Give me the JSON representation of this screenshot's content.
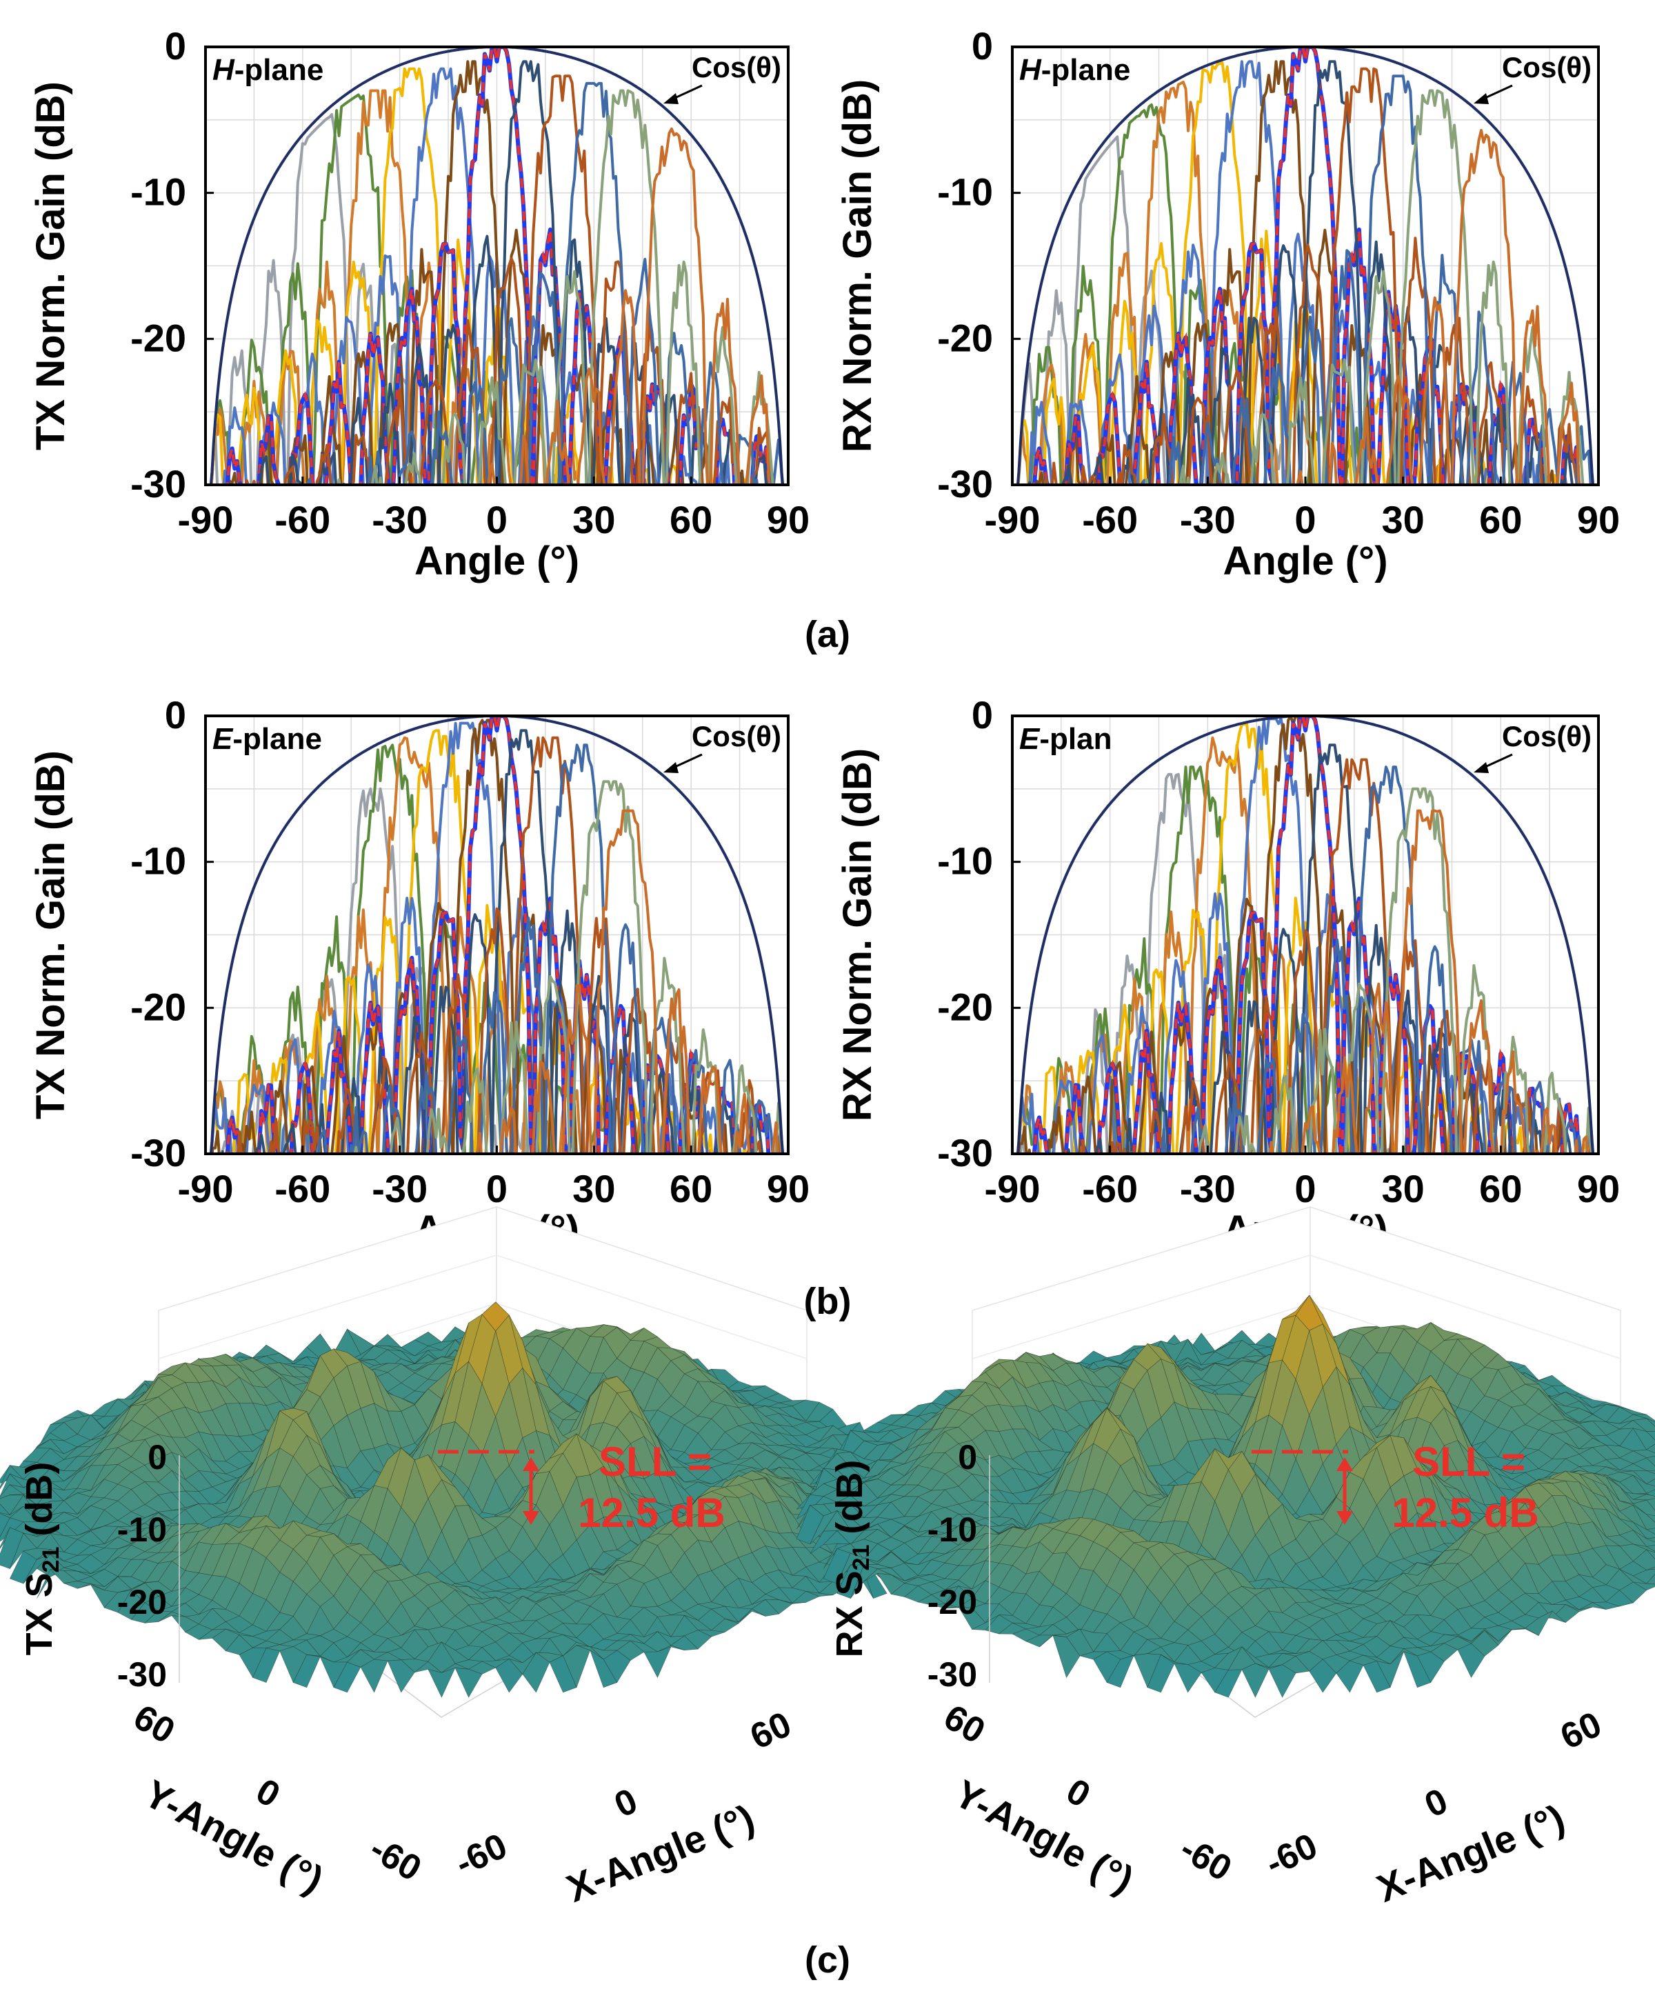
{
  "figure": {
    "labels": [
      "(a)",
      "(b)",
      "(c)"
    ]
  },
  "colors": {
    "envelope": "#1f2f66",
    "highlight": "#1f3cf0",
    "highlight_dash": "#e8312a",
    "annotation": "#e8312a",
    "palette": [
      "#9aa0a8",
      "#5b8a3a",
      "#d07a2a",
      "#f2b800",
      "#4f76c2",
      "#7f4b16",
      "#6e7378",
      "#2f4e73",
      "#b1541c",
      "#3f6aa6",
      "#8aa27a",
      "#c96d28"
    ]
  },
  "chart_data": [
    {
      "id": "tx-h",
      "type": "line",
      "ylabel": "TX Norm. Gain (dB)",
      "xlabel": "Angle (°)",
      "xlim": [
        -90,
        90
      ],
      "ylim": [
        -30,
        0
      ],
      "xticks": [
        "-90",
        "-60",
        "-30",
        "0",
        "30",
        "60",
        "90"
      ],
      "yticks": [
        "0",
        "-10",
        "-20",
        "-30"
      ],
      "plane_prefix": "H",
      "plane_suffix": "-plane",
      "envelope_label": "Cos(θ)",
      "beam_peaks": [
        -55,
        -45,
        -37,
        -27,
        -17,
        -8,
        0,
        10,
        20,
        30,
        40,
        55
      ],
      "beam_peak_gains": [
        -3,
        -3,
        -3,
        -1.5,
        -1.5,
        -1,
        0,
        -1,
        -2,
        -2.5,
        -3,
        -5
      ],
      "highlight_beam": 0
    },
    {
      "id": "rx-h",
      "type": "line",
      "ylabel": "RX Norm. Gain (dB)",
      "xlabel": "Angle (°)",
      "xlim": [
        -90,
        90
      ],
      "ylim": [
        -30,
        0
      ],
      "xticks": [
        "-90",
        "-60",
        "-30",
        "0",
        "30",
        "60",
        "90"
      ],
      "yticks": [
        "0",
        "-10",
        "-20",
        "-30"
      ],
      "plane_prefix": "H",
      "plane_suffix": "-plane",
      "envelope_label": "Cos(θ)",
      "beam_peaks": [
        -62,
        -50,
        -40,
        -28,
        -18,
        -8,
        0,
        8,
        18,
        28,
        40,
        55
      ],
      "beam_peak_gains": [
        -3.5,
        -3,
        -2,
        -1,
        -1,
        -1,
        0,
        -1,
        -1.5,
        -2,
        -3,
        -5.5
      ],
      "highlight_beam": 0
    },
    {
      "id": "tx-e",
      "type": "line",
      "ylabel": "TX Norm. Gain (dB)",
      "xlabel": "Angle (°)",
      "xlim": [
        -90,
        90
      ],
      "ylim": [
        -30,
        0
      ],
      "xticks": [
        "-90",
        "-60",
        "-30",
        "0",
        "30",
        "60",
        "90"
      ],
      "yticks": [
        "0",
        "-10",
        "-20",
        "-30"
      ],
      "plane_prefix": "E",
      "plane_suffix": "-plane",
      "envelope_label": "Cos(θ)",
      "beam_peaks": [
        -38,
        -33,
        -26,
        -18,
        -10,
        -4,
        0,
        8,
        16,
        25,
        35,
        40
      ],
      "beam_peak_gains": [
        -5,
        -2,
        -1.5,
        -1,
        -0.5,
        -0.3,
        0,
        -1,
        -1.5,
        -2,
        -4.5,
        -6.5
      ],
      "highlight_beam": 0
    },
    {
      "id": "rx-e",
      "type": "line",
      "ylabel": "RX Norm. Gain (dB)",
      "xlabel": "Angle (°)",
      "xlim": [
        -90,
        90
      ],
      "ylim": [
        -30,
        0
      ],
      "xticks": [
        "-90",
        "-60",
        "-30",
        "0",
        "30",
        "60",
        "90"
      ],
      "yticks": [
        "0",
        "-10",
        "-20",
        "-30"
      ],
      "plane_prefix": "E",
      "plane_suffix": "-plan",
      "envelope_label": "Cos(θ)",
      "beam_peaks": [
        -40,
        -33,
        -25,
        -18,
        -10,
        -4,
        0,
        8,
        16,
        25,
        35,
        38
      ],
      "beam_peak_gains": [
        -4,
        -3.5,
        -1.5,
        -0.5,
        -0.2,
        0,
        0,
        -2,
        -3,
        -3.5,
        -5,
        -6.5
      ],
      "highlight_beam": 0
    },
    {
      "id": "tx-3d",
      "type": "surface",
      "zlabel_prefix": "TX S",
      "zlabel_sub": "21",
      "zlabel_suffix": " (dB)",
      "zticks": [
        "0",
        "-10",
        "-20",
        "-30"
      ],
      "xlabel": "X-Angle (°)",
      "ylabel": "Y-Angle (°)",
      "xticks": [
        "-60",
        "0",
        "60"
      ],
      "yticks": [
        "60",
        "0",
        "-60"
      ],
      "zlim": [
        -35,
        0
      ],
      "sll_line1": "SLL =",
      "sll_line2": "12.5 dB",
      "sll_db": 12.5
    },
    {
      "id": "rx-3d",
      "type": "surface",
      "zlabel_prefix": "RX S",
      "zlabel_sub": "21",
      "zlabel_suffix": " (dB)",
      "zticks": [
        "0",
        "-10",
        "-20",
        "-30"
      ],
      "xlabel": "X-Angle (°)",
      "ylabel": "Y-Angle (°)",
      "xticks": [
        "-60",
        "0",
        "60"
      ],
      "yticks": [
        "60",
        "0",
        "-60"
      ],
      "zlim": [
        -35,
        0
      ],
      "sll_line1": "SLL =",
      "sll_line2": "12.5 dB",
      "sll_db": 12.5
    }
  ]
}
